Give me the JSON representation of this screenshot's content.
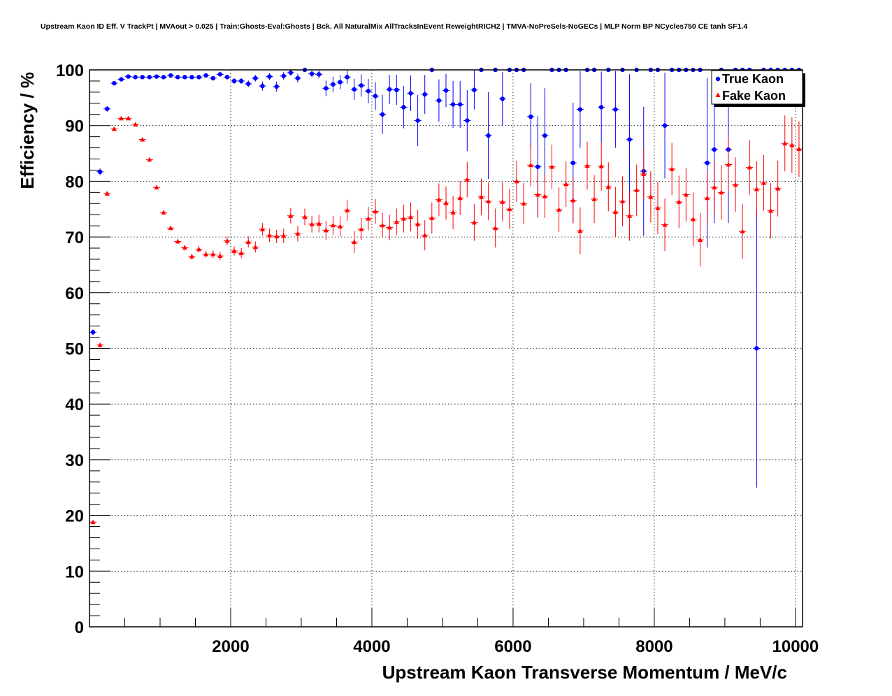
{
  "title": "Upstream Kaon ID Eff. V TrackPt | MVAout > 0.025 | Train:Ghosts-Eval:Ghosts | Bck. All NaturalMix AllTracksInEvent ReweightRICH2 | TMVA-NoPreSels-NoGECs | MLP Norm BP NCycles750 CE tanh SF1.4",
  "chart_data": {
    "type": "scatter",
    "title": "Upstream Kaon ID Eff. V TrackPt | MVAout > 0.025 | Train:Ghosts-Eval:Ghosts | Bck. All NaturalMix AllTracksInEvent ReweightRICH2 | TMVA-NoPreSels-NoGECs | MLP Norm BP NCycles750 CE tanh SF1.4",
    "xlabel": "Upstream Kaon Transverse Momentum / MeV/c",
    "ylabel": "Efficiency / %",
    "xlim": [
      0,
      10100
    ],
    "ylim": [
      0,
      100
    ],
    "x_ticks": [
      2000,
      4000,
      6000,
      8000,
      10000
    ],
    "y_ticks": [
      0,
      10,
      20,
      30,
      40,
      50,
      60,
      70,
      80,
      90,
      100
    ],
    "grid": true,
    "legend_position": "top-right",
    "bin_half_width": 50,
    "series": [
      {
        "name": "True Kaon",
        "color": "#0000ff",
        "marker": "circle",
        "x": [
          50,
          150,
          250,
          350,
          450,
          550,
          650,
          750,
          850,
          950,
          1050,
          1150,
          1250,
          1350,
          1450,
          1550,
          1650,
          1750,
          1850,
          1950,
          2050,
          2150,
          2250,
          2350,
          2450,
          2550,
          2650,
          2750,
          2850,
          2950,
          3050,
          3150,
          3250,
          3350,
          3450,
          3550,
          3650,
          3750,
          3850,
          3950,
          4050,
          4150,
          4250,
          4350,
          4450,
          4550,
          4650,
          4750,
          4850,
          4950,
          5050,
          5150,
          5250,
          5350,
          5450,
          5550,
          5650,
          5750,
          5850,
          5950,
          6050,
          6150,
          6250,
          6350,
          6450,
          6550,
          6650,
          6750,
          6850,
          6950,
          7050,
          7150,
          7250,
          7350,
          7450,
          7550,
          7650,
          7750,
          7850,
          7950,
          8050,
          8150,
          8250,
          8350,
          8450,
          8550,
          8650,
          8750,
          8850,
          8950,
          9050,
          9150,
          9250,
          9350,
          9450,
          9550,
          9650,
          9750,
          9850,
          9950,
          10050
        ],
        "y": [
          52.9,
          81.7,
          93.0,
          97.6,
          98.3,
          98.8,
          98.7,
          98.7,
          98.7,
          98.8,
          98.7,
          99.0,
          98.7,
          98.7,
          98.7,
          98.7,
          99.0,
          98.5,
          99.2,
          98.7,
          98.0,
          98.0,
          97.5,
          98.5,
          97.1,
          98.8,
          97.0,
          98.9,
          99.5,
          98.5,
          100,
          99.3,
          99.2,
          96.7,
          97.4,
          97.8,
          98.7,
          96.5,
          97.2,
          96.2,
          95.3,
          92.0,
          96.5,
          96.4,
          93.3,
          95.8,
          90.9,
          95.6,
          100,
          94.5,
          96.3,
          93.8,
          93.8,
          90.9,
          96.4,
          100,
          88.2,
          100,
          94.8,
          100,
          100,
          100,
          91.6,
          82.6,
          88.2,
          100,
          100,
          100,
          83.3,
          92.9,
          100,
          100,
          93.3,
          100,
          92.9,
          100,
          87.5,
          100,
          81.8,
          100,
          100,
          90.0,
          100,
          100,
          100,
          100,
          100,
          83.3,
          85.7,
          100,
          85.7,
          100,
          100,
          100,
          50.0,
          100,
          100,
          100,
          100,
          100,
          100
        ],
        "err": [
          0.5,
          0.6,
          0.5,
          0.3,
          0.2,
          0.2,
          0.2,
          0.2,
          0.2,
          0.2,
          0.2,
          0.2,
          0.2,
          0.3,
          0.3,
          0.3,
          0.3,
          0.3,
          0.3,
          0.4,
          0.5,
          0.5,
          0.6,
          0.6,
          0.8,
          0.6,
          0.9,
          0.7,
          0.5,
          0.8,
          0,
          0.6,
          0.7,
          1.4,
          1.4,
          1.3,
          1.2,
          1.9,
          2.0,
          2.2,
          2.5,
          3.5,
          2.6,
          2.7,
          3.8,
          3.2,
          4.6,
          3.5,
          0,
          3.8,
          3.0,
          4.2,
          4.2,
          5.5,
          3.5,
          0,
          7.8,
          0,
          4.8,
          0,
          0,
          0,
          6.0,
          9.1,
          8.5,
          0,
          0,
          0,
          10.8,
          6.9,
          0,
          0,
          6.4,
          0,
          6.9,
          0,
          11.7,
          0,
          11.6,
          0,
          0,
          9.5,
          0,
          0,
          0,
          0,
          0,
          15.2,
          13.2,
          0,
          13.2,
          0,
          0,
          0,
          25.0,
          0,
          0,
          0,
          0,
          0,
          0
        ]
      },
      {
        "name": "Fake Kaon",
        "color": "#ff0000",
        "marker": "triangle",
        "x": [
          50,
          150,
          250,
          350,
          450,
          550,
          650,
          750,
          850,
          950,
          1050,
          1150,
          1250,
          1350,
          1450,
          1550,
          1650,
          1750,
          1850,
          1950,
          2050,
          2150,
          2250,
          2350,
          2450,
          2550,
          2650,
          2750,
          2850,
          2950,
          3050,
          3150,
          3250,
          3350,
          3450,
          3550,
          3650,
          3750,
          3850,
          3950,
          4050,
          4150,
          4250,
          4350,
          4450,
          4550,
          4650,
          4750,
          4850,
          4950,
          5050,
          5150,
          5250,
          5350,
          5450,
          5550,
          5650,
          5750,
          5850,
          5950,
          6050,
          6150,
          6250,
          6350,
          6450,
          6550,
          6650,
          6750,
          6850,
          6950,
          7050,
          7150,
          7250,
          7350,
          7450,
          7550,
          7650,
          7750,
          7850,
          7950,
          8050,
          8150,
          8250,
          8350,
          8450,
          8550,
          8650,
          8750,
          8850,
          8950,
          9050,
          9150,
          9250,
          9350,
          9450,
          9550,
          9650,
          9750,
          9850,
          9950,
          10050
        ],
        "y": [
          18.8,
          50.6,
          77.8,
          89.4,
          91.3,
          91.3,
          90.2,
          87.5,
          83.9,
          78.9,
          74.4,
          71.6,
          69.2,
          68.1,
          66.5,
          67.8,
          66.9,
          66.9,
          66.6,
          69.3,
          67.5,
          67.1,
          69.1,
          68.2,
          71.4,
          70.3,
          70.1,
          70.2,
          73.8,
          70.6,
          73.6,
          72.3,
          72.4,
          71.2,
          72.1,
          71.9,
          74.8,
          69.1,
          71.4,
          73.3,
          74.6,
          72.1,
          71.7,
          72.7,
          73.3,
          73.6,
          72.3,
          70.3,
          73.4,
          76.7,
          76.1,
          74.4,
          77.0,
          80.3,
          72.6,
          77.2,
          76.4,
          71.6,
          76.3,
          75.0,
          80.0,
          76.0,
          82.9,
          77.6,
          77.3,
          82.6,
          74.9,
          79.5,
          76.6,
          71.1,
          82.8,
          76.8,
          82.7,
          79.0,
          74.5,
          76.4,
          73.8,
          78.4,
          81.3,
          77.2,
          75.2,
          72.2,
          82.2,
          76.3,
          77.6,
          73.2,
          69.5,
          77.0,
          78.9,
          78.0,
          83.0,
          79.4,
          71.0,
          82.5,
          78.6,
          79.7,
          74.7,
          78.7,
          86.8,
          86.5,
          85.8
        ],
        "err": [
          0.3,
          0.4,
          0.4,
          0.3,
          0.3,
          0.3,
          0.3,
          0.3,
          0.3,
          0.3,
          0.4,
          0.4,
          0.4,
          0.5,
          0.5,
          0.6,
          0.6,
          0.7,
          0.7,
          0.8,
          0.8,
          0.9,
          1.0,
          1.0,
          1.1,
          1.2,
          1.2,
          1.3,
          1.4,
          1.4,
          1.5,
          1.5,
          1.6,
          1.7,
          1.7,
          1.8,
          1.9,
          2.0,
          2.0,
          2.1,
          2.2,
          2.2,
          2.3,
          2.4,
          2.5,
          2.6,
          2.6,
          2.7,
          2.8,
          2.9,
          3.0,
          3.0,
          3.1,
          3.2,
          3.3,
          3.3,
          3.4,
          3.5,
          3.5,
          3.6,
          3.7,
          3.7,
          3.8,
          3.9,
          3.9,
          4.0,
          4.0,
          4.1,
          4.2,
          4.2,
          4.3,
          4.3,
          4.4,
          4.4,
          4.5,
          4.5,
          4.5,
          4.6,
          4.6,
          4.6,
          4.7,
          4.7,
          4.7,
          4.7,
          4.8,
          4.8,
          4.8,
          4.8,
          4.8,
          4.9,
          4.9,
          4.9,
          4.9,
          4.9,
          5.0,
          5.0,
          5.0,
          5.0,
          5.0,
          5.0,
          5.0
        ]
      }
    ]
  }
}
